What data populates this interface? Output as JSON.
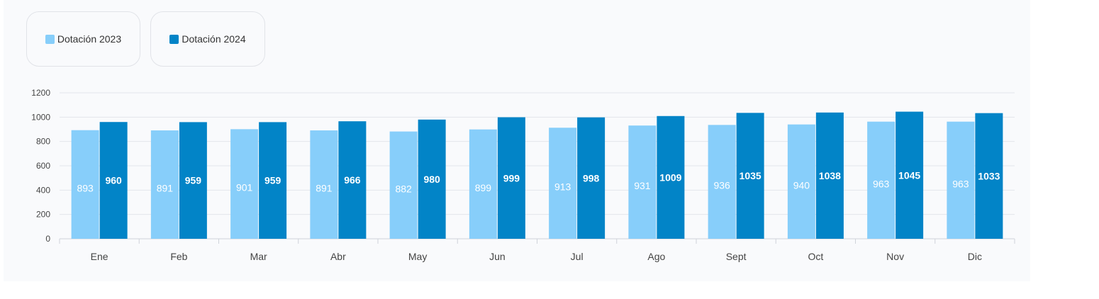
{
  "legend": {
    "series_2023": "Dotación 2023",
    "series_2024": "Dotación 2024"
  },
  "chart_data": {
    "type": "bar",
    "title": "",
    "xlabel": "",
    "ylabel": "",
    "ylim": [
      0,
      1200
    ],
    "yticks": [
      0,
      200,
      400,
      600,
      800,
      1000,
      1200
    ],
    "grid": true,
    "legend_position": "top-left",
    "categories": [
      "Ene",
      "Feb",
      "Mar",
      "Abr",
      "May",
      "Jun",
      "Jul",
      "Ago",
      "Sept",
      "Oct",
      "Nov",
      "Dic"
    ],
    "series": [
      {
        "name": "Dotación 2023",
        "color": "#87cefa",
        "values": [
          893,
          891,
          901,
          891,
          882,
          899,
          913,
          931,
          936,
          940,
          963,
          963
        ]
      },
      {
        "name": "Dotación 2024",
        "color": "#0284c7",
        "values": [
          960,
          959,
          959,
          966,
          980,
          999,
          998,
          1009,
          1035,
          1038,
          1045,
          1033
        ]
      }
    ]
  }
}
